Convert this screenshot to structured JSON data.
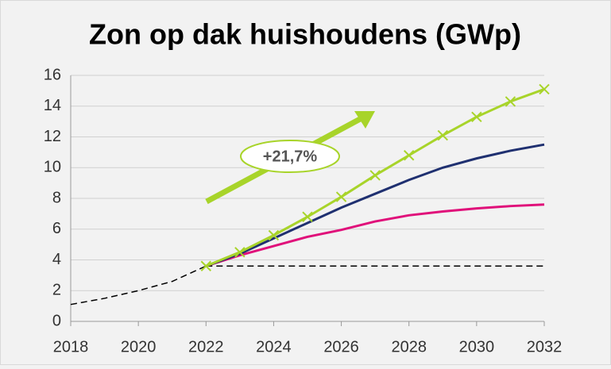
{
  "chart_data": {
    "type": "line",
    "title": "Zon op dak huishoudens (GWp)",
    "x": [
      2018,
      2019,
      2020,
      2021,
      2022,
      2023,
      2024,
      2025,
      2026,
      2027,
      2028,
      2029,
      2030,
      2031,
      2032
    ],
    "xlim": [
      2018,
      2032
    ],
    "xticks": [
      2018,
      2020,
      2022,
      2024,
      2026,
      2028,
      2030,
      2032
    ],
    "ylim": [
      0,
      16
    ],
    "yticks": [
      0,
      2,
      4,
      6,
      8,
      10,
      12,
      14,
      16
    ],
    "grid": true,
    "series": [
      {
        "color": "#000000",
        "dash": true,
        "values": [
          1.1,
          1.5,
          2.0,
          2.6,
          3.6,
          null,
          null,
          null,
          null,
          null,
          null,
          null,
          null,
          null,
          null
        ]
      },
      {
        "color": "#000000",
        "dash": true,
        "values": [
          null,
          null,
          null,
          null,
          3.6,
          3.6,
          3.6,
          3.6,
          3.6,
          3.6,
          3.6,
          3.6,
          3.6,
          3.6,
          3.6
        ]
      },
      {
        "color": "#e0107a",
        "values": [
          null,
          null,
          null,
          null,
          3.6,
          4.3,
          4.9,
          5.5,
          5.95,
          6.5,
          6.9,
          7.15,
          7.35,
          7.5,
          7.6
        ]
      },
      {
        "color": "#1f3070",
        "values": [
          null,
          null,
          null,
          null,
          3.6,
          4.4,
          5.4,
          6.4,
          7.4,
          8.3,
          9.2,
          10.0,
          10.6,
          11.1,
          11.5
        ]
      },
      {
        "color": "#a8d42a",
        "marker": "x",
        "values": [
          null,
          null,
          null,
          null,
          3.6,
          4.5,
          5.6,
          6.8,
          8.1,
          9.5,
          10.8,
          12.1,
          13.3,
          14.3,
          15.1
        ]
      }
    ],
    "annotation": "+21,7%"
  }
}
